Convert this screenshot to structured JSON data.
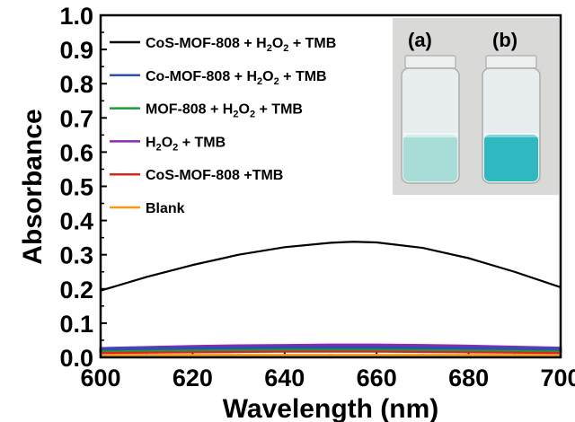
{
  "chart_data": {
    "type": "line",
    "xlabel": "Wavelength (nm)",
    "ylabel": "Absorbance",
    "xlim": [
      600,
      700
    ],
    "ylim": [
      0.0,
      1.0
    ],
    "xticks": [
      "600",
      "620",
      "640",
      "660",
      "680",
      "700"
    ],
    "yticks": [
      "0.0",
      "0.1",
      "0.2",
      "0.3",
      "0.4",
      "0.5",
      "0.6",
      "0.7",
      "0.8",
      "0.9",
      "1.0"
    ],
    "x": [
      600,
      610,
      620,
      630,
      640,
      650,
      655,
      660,
      670,
      680,
      690,
      700
    ],
    "series": [
      {
        "name": "CoS-MOF-808 + H2O2 + TMB",
        "color": "#000000",
        "legend": {
          "pre": "CoS-MOF-808 + H",
          "s1": "2",
          "mid": "O",
          "s2": "2",
          "post": " + TMB"
        },
        "values": [
          0.195,
          0.235,
          0.27,
          0.3,
          0.322,
          0.335,
          0.338,
          0.336,
          0.32,
          0.29,
          0.25,
          0.205
        ]
      },
      {
        "name": "Co-MOF-808 + H2O2 + TMB",
        "color": "#2f4fb5",
        "legend": {
          "pre": "Co-MOF-808 + H",
          "s1": "2",
          "mid": "O",
          "s2": "2",
          "post": " + TMB"
        },
        "values": [
          0.024,
          0.026,
          0.027,
          0.028,
          0.029,
          0.029,
          0.029,
          0.029,
          0.028,
          0.027,
          0.026,
          0.024
        ]
      },
      {
        "name": "MOF-808 + H2O2 + TMB",
        "color": "#1f9a3a",
        "legend": {
          "pre": "MOF-808 + H",
          "s1": "2",
          "mid": "O",
          "s2": "2",
          "post": " + TMB"
        },
        "values": [
          0.02,
          0.021,
          0.022,
          0.023,
          0.024,
          0.024,
          0.024,
          0.024,
          0.023,
          0.022,
          0.021,
          0.02
        ]
      },
      {
        "name": "H2O2 + TMB",
        "color": "#8a2bb0",
        "legend": {
          "pre": "H",
          "s1": "2",
          "mid": "O",
          "s2": "2",
          "post": " + TMB"
        },
        "values": [
          0.026,
          0.029,
          0.032,
          0.034,
          0.035,
          0.036,
          0.036,
          0.036,
          0.035,
          0.033,
          0.03,
          0.027
        ]
      },
      {
        "name": "CoS-MOF-808 +TMB",
        "color": "#e0241c",
        "legend": {
          "pre": "CoS-MOF-808 +TMB",
          "s1": "",
          "mid": "",
          "s2": "",
          "post": ""
        },
        "values": [
          0.014,
          0.015,
          0.016,
          0.017,
          0.018,
          0.018,
          0.018,
          0.018,
          0.017,
          0.016,
          0.015,
          0.014
        ]
      },
      {
        "name": "Blank",
        "color": "#f39a1c",
        "legend": {
          "pre": "Blank",
          "s1": "",
          "mid": "",
          "s2": "",
          "post": ""
        },
        "values": [
          0.006,
          0.006,
          0.006,
          0.006,
          0.006,
          0.006,
          0.006,
          0.006,
          0.006,
          0.006,
          0.006,
          0.006
        ]
      }
    ],
    "inset": {
      "labels": [
        "(a)",
        "(b)"
      ],
      "liquid_colors": [
        "#a8dcd6",
        "#2fb8c0"
      ]
    }
  }
}
